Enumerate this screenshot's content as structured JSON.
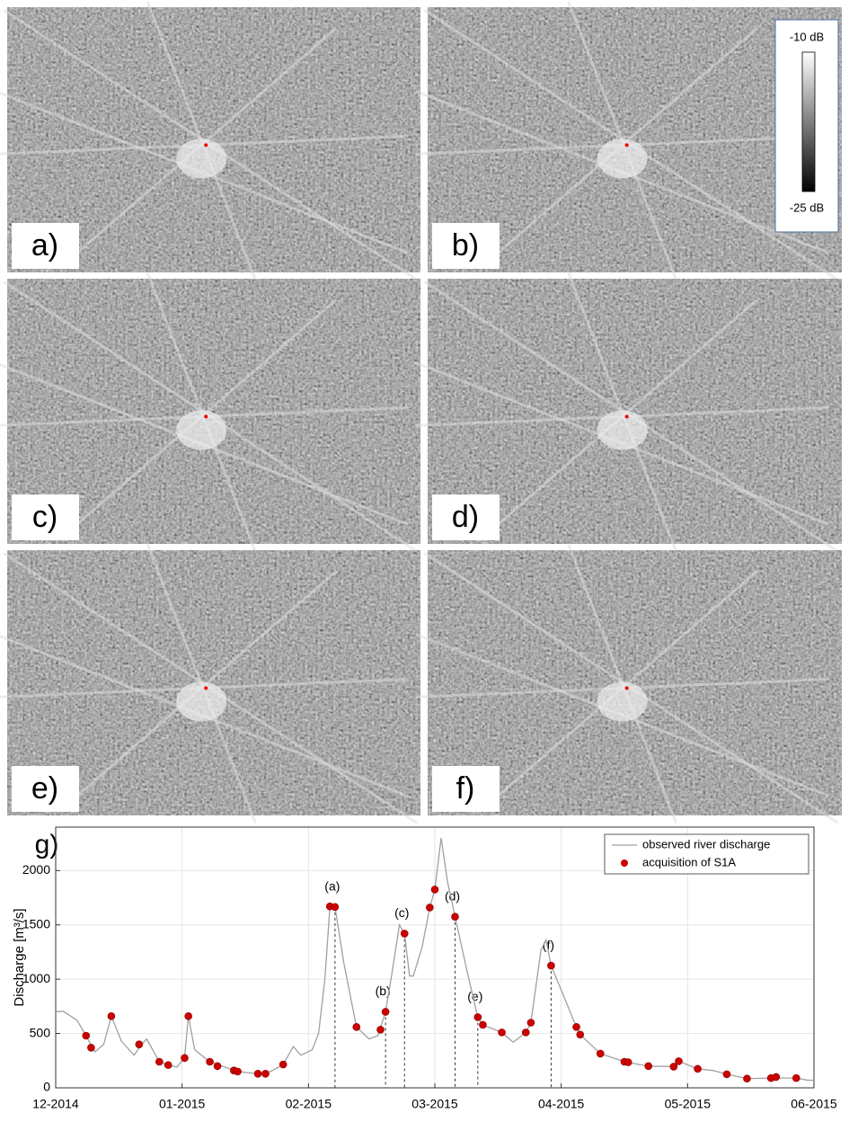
{
  "panels": [
    {
      "label": "a)"
    },
    {
      "label": "b)"
    },
    {
      "label": "c)"
    },
    {
      "label": "d)"
    },
    {
      "label": "e)"
    },
    {
      "label": "f)"
    }
  ],
  "colorbar": {
    "top": "-10 dB",
    "bottom": "-25 dB"
  },
  "chart_data": {
    "type": "line",
    "panel_label": "g)",
    "ylabel": "Discharge [m³/s]",
    "xlim": [
      0,
      6
    ],
    "xticks": [
      {
        "value": 0,
        "label": "12-2014"
      },
      {
        "value": 1,
        "label": "01-2015"
      },
      {
        "value": 2,
        "label": "02-2015"
      },
      {
        "value": 3,
        "label": "03-2015"
      },
      {
        "value": 4,
        "label": "04-2015"
      },
      {
        "value": 5,
        "label": "05-2015"
      },
      {
        "value": 6,
        "label": "06-2015"
      }
    ],
    "ylim": [
      0,
      2400
    ],
    "yticks": [
      0,
      500,
      1000,
      1500,
      2000
    ],
    "grid": true,
    "legend": "upper right",
    "series": [
      {
        "name": "observed river discharge",
        "color": "#a0a0a0",
        "mode": "line",
        "x": [
          0,
          0.06,
          0.17,
          0.24,
          0.31,
          0.38,
          0.44,
          0.52,
          0.62,
          0.68,
          0.72,
          0.82,
          0.89,
          0.96,
          1.02,
          1.05,
          1.1,
          1.22,
          1.44,
          1.6,
          1.7,
          1.8,
          1.88,
          1.94,
          2.03,
          2.08,
          2.13,
          2.17,
          2.21,
          2.28,
          2.38,
          2.48,
          2.55,
          2.61,
          2.66,
          2.72,
          2.76,
          2.8,
          2.83,
          2.9,
          2.96,
          3.0,
          3.05,
          3.1,
          3.16,
          3.25,
          3.34,
          3.38,
          3.53,
          3.62,
          3.72,
          3.76,
          3.84,
          3.88,
          3.92,
          4.0,
          4.12,
          4.15,
          4.31,
          4.5,
          4.69,
          4.89,
          4.93,
          5.08,
          5.2,
          5.31,
          5.47,
          5.66,
          5.86,
          5.95,
          6.0
        ],
        "values": [
          700,
          705,
          620,
          480,
          330,
          400,
          660,
          430,
          300,
          400,
          450,
          240,
          210,
          190,
          280,
          660,
          350,
          240,
          150,
          130,
          150,
          215,
          380,
          300,
          350,
          500,
          1000,
          1670,
          1665,
          1150,
          560,
          450,
          480,
          700,
          1050,
          1500,
          1420,
          1030,
          1030,
          1300,
          1660,
          1825,
          2300,
          1900,
          1575,
          1100,
          650,
          580,
          510,
          420,
          510,
          600,
          1270,
          1360,
          1125,
          900,
          560,
          490,
          315,
          240,
          200,
          195,
          245,
          175,
          160,
          125,
          85,
          90,
          90,
          70,
          70
        ]
      },
      {
        "name": "acquisition of S1A",
        "color": "#cc0000",
        "mode": "markers",
        "x": [
          0.24,
          0.28,
          0.44,
          0.66,
          0.82,
          0.89,
          1.02,
          1.05,
          1.22,
          1.28,
          1.41,
          1.44,
          1.6,
          1.66,
          1.8,
          2.17,
          2.21,
          2.38,
          2.57,
          2.61,
          2.76,
          2.96,
          3.0,
          3.16,
          3.34,
          3.38,
          3.53,
          3.72,
          3.76,
          3.92,
          4.12,
          4.15,
          4.31,
          4.5,
          4.53,
          4.69,
          4.89,
          4.93,
          5.08,
          5.31,
          5.47,
          5.66,
          5.7,
          5.86
        ],
        "values": [
          480,
          370,
          660,
          400,
          240,
          210,
          275,
          660,
          240,
          200,
          160,
          150,
          130,
          130,
          215,
          1670,
          1665,
          560,
          535,
          700,
          1420,
          1660,
          1825,
          1575,
          650,
          580,
          510,
          510,
          600,
          1125,
          560,
          490,
          315,
          240,
          235,
          200,
          195,
          245,
          175,
          125,
          85,
          90,
          100,
          90
        ]
      }
    ],
    "annotations": [
      {
        "text": "(a)",
        "x": 2.21,
        "y": 1665
      },
      {
        "text": "(b)",
        "x": 2.61,
        "y": 700
      },
      {
        "text": "(c)",
        "x": 2.76,
        "y": 1420
      },
      {
        "text": "(d)",
        "x": 3.16,
        "y": 1575
      },
      {
        "text": "(e)",
        "x": 3.34,
        "y": 650
      },
      {
        "text": "(f)",
        "x": 3.92,
        "y": 1125
      }
    ]
  }
}
